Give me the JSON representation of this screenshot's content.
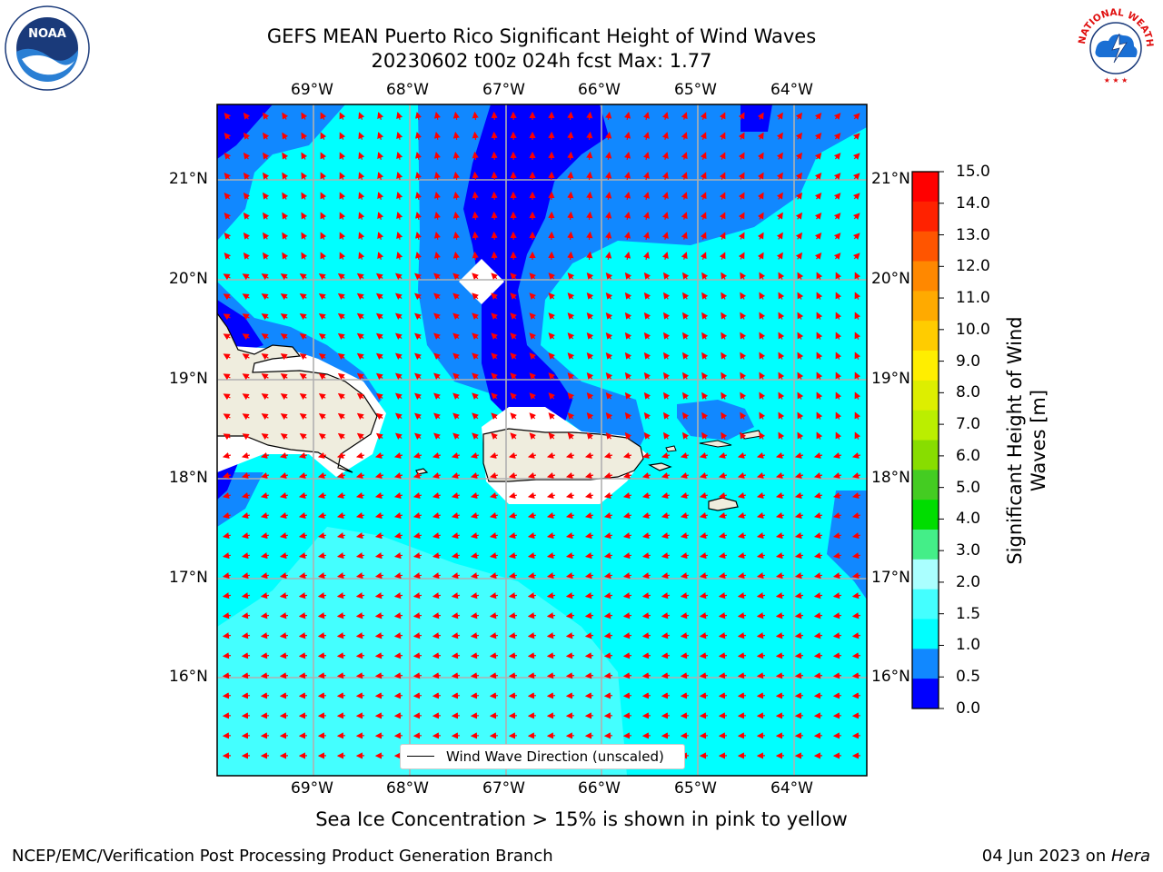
{
  "title": {
    "line1": "GEFS MEAN Puerto Rico Significant Height of Wind Waves",
    "line2": "20230602 t00z 024h fcst   Max: 1.77"
  },
  "axes": {
    "lon_labels": [
      "69°W",
      "68°W",
      "67°W",
      "66°W",
      "65°W",
      "64°W"
    ],
    "lat_labels": [
      "21°N",
      "20°N",
      "19°N",
      "18°N",
      "17°N",
      "16°N"
    ]
  },
  "colorbar": {
    "label": "Significant Height of Wind Waves [m]",
    "ticks": [
      "15.0",
      "14.0",
      "13.0",
      "12.0",
      "11.0",
      "10.0",
      "9.0",
      "8.0",
      "7.0",
      "6.0",
      "5.0",
      "4.0",
      "3.0",
      "2.0",
      "1.5",
      "1.0",
      "0.5",
      "0.0"
    ],
    "colors": [
      "#ff0000",
      "#ff2200",
      "#ff5500",
      "#ff8800",
      "#ffaa00",
      "#ffcc00",
      "#ffee00",
      "#ddee00",
      "#bbee00",
      "#88dd00",
      "#44cc22",
      "#00dd00",
      "#44ee88",
      "#aaffff",
      "#44ffff",
      "#00ffff",
      "#1188ff",
      "#0000ff"
    ]
  },
  "legend": {
    "text": "Wind Wave Direction (unscaled)"
  },
  "note": "Sea Ice Concentration > 15% is shown in pink to yellow",
  "footer": {
    "left": "NCEP/EMC/Verification Post Processing Product Generation Branch",
    "right_date": "04 Jun 2023 on ",
    "right_host": "Hera"
  },
  "logos": {
    "left": "NOAA",
    "right": "NATIONAL WEATHER SERVICE"
  },
  "chart_data": {
    "type": "heatmap",
    "title": "GEFS MEAN Puerto Rico Significant Height of Wind Waves",
    "subtitle": "20230602 t00z 024h fcst   Max: 1.77",
    "max": 1.77,
    "lon_range": [
      "69.9°W",
      "63.2°W"
    ],
    "lat_range": [
      "15.0°N",
      "21.7°N"
    ],
    "levels": [
      0.0,
      0.5,
      1.0,
      1.5,
      2.0,
      3.0,
      4.0,
      5.0,
      6.0,
      7.0,
      8.0,
      9.0,
      10.0,
      11.0,
      12.0,
      13.0,
      14.0,
      15.0
    ],
    "vector_field": "Wind Wave Direction (unscaled)",
    "grid": true
  }
}
